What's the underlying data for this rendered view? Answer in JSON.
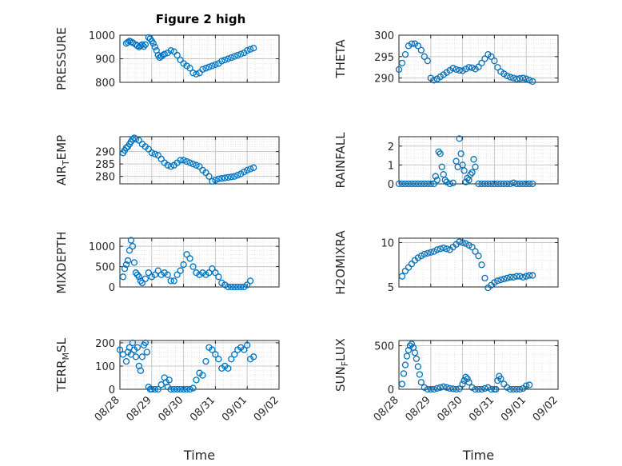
{
  "figure": {
    "title": "Figure 2 high"
  },
  "colors": {
    "marker": "#0072BD",
    "axis": "#262626",
    "grid": "#c8c8c8",
    "minor_grid": "#e2e2e2",
    "background": "#ffffff"
  },
  "chart_data": [
    {
      "type": "scatter",
      "title": "Figure 2 high",
      "ylabel": "PRESSURE",
      "ylim": [
        800,
        1000
      ],
      "yticks": [
        800,
        900,
        1000
      ],
      "xlabel": "",
      "xticklabels": [],
      "grid": true,
      "marker": "open-circle",
      "x": [
        0.2,
        0.25,
        0.3,
        0.35,
        0.4,
        0.5,
        0.55,
        0.6,
        0.65,
        0.7,
        0.75,
        0.8,
        0.9,
        0.95,
        1.0,
        1.05,
        1.1,
        1.15,
        1.2,
        1.25,
        1.3,
        1.35,
        1.4,
        1.5,
        1.6,
        1.7,
        1.8,
        1.9,
        2.0,
        2.1,
        2.2,
        2.3,
        2.4,
        2.5,
        2.6,
        2.7,
        2.8,
        2.9,
        3.0,
        3.1,
        3.2,
        3.3,
        3.4,
        3.5,
        3.6,
        3.7,
        3.8,
        3.9,
        4.0,
        4.1,
        4.2
      ],
      "y": [
        965,
        970,
        975,
        972,
        968,
        960,
        955,
        950,
        955,
        960,
        952,
        960,
        990,
        985,
        975,
        965,
        950,
        935,
        915,
        905,
        910,
        915,
        920,
        925,
        935,
        930,
        915,
        895,
        880,
        870,
        860,
        840,
        835,
        840,
        855,
        860,
        865,
        870,
        875,
        880,
        890,
        895,
        900,
        905,
        910,
        915,
        920,
        925,
        935,
        940,
        945
      ]
    },
    {
      "type": "scatter",
      "ylabel": "THETA",
      "ylim": [
        289,
        300
      ],
      "yticks": [
        290,
        295,
        300
      ],
      "xticklabels": [],
      "grid": true,
      "marker": "open-circle",
      "x": [
        0.0,
        0.1,
        0.2,
        0.3,
        0.4,
        0.5,
        0.6,
        0.7,
        0.8,
        0.9,
        1.0,
        1.1,
        1.2,
        1.3,
        1.4,
        1.5,
        1.6,
        1.7,
        1.8,
        1.9,
        2.0,
        2.1,
        2.2,
        2.3,
        2.4,
        2.5,
        2.6,
        2.7,
        2.8,
        2.9,
        3.0,
        3.1,
        3.2,
        3.3,
        3.4,
        3.5,
        3.6,
        3.7,
        3.8,
        3.9,
        4.0,
        4.1,
        4.2
      ],
      "y": [
        292,
        293.5,
        295.5,
        297.5,
        298,
        298,
        297.5,
        296.5,
        295,
        294,
        290,
        289.5,
        289.8,
        290.3,
        290.8,
        291.3,
        291.8,
        292.3,
        292,
        291.8,
        291.7,
        292.1,
        292.5,
        292.4,
        292.1,
        292.6,
        293.5,
        294.5,
        295.5,
        295,
        294,
        292.5,
        291.5,
        291,
        290.5,
        290.2,
        290,
        289.8,
        289.9,
        290,
        289.8,
        289.5,
        289.2
      ]
    },
    {
      "type": "scatter",
      "ylabel": "AIR_TEMP",
      "ylim": [
        277,
        296
      ],
      "yticks": [
        280,
        285,
        290
      ],
      "xticklabels": [],
      "grid": true,
      "marker": "open-circle",
      "x": [
        0.1,
        0.15,
        0.2,
        0.25,
        0.3,
        0.35,
        0.4,
        0.45,
        0.5,
        0.6,
        0.7,
        0.8,
        0.9,
        1.0,
        1.1,
        1.2,
        1.3,
        1.4,
        1.5,
        1.6,
        1.7,
        1.8,
        1.9,
        2.0,
        2.1,
        2.2,
        2.3,
        2.4,
        2.5,
        2.6,
        2.7,
        2.8,
        2.9,
        3.0,
        3.1,
        3.2,
        3.3,
        3.4,
        3.5,
        3.6,
        3.7,
        3.8,
        3.9,
        4.0,
        4.1,
        4.2
      ],
      "y": [
        289.5,
        290.5,
        291.5,
        292,
        293,
        294,
        295,
        295.5,
        295,
        294.5,
        293,
        292,
        291,
        289.5,
        289,
        288.5,
        287,
        285.5,
        284.5,
        284,
        284.5,
        285.5,
        286.5,
        286.5,
        286,
        285.5,
        285,
        284.5,
        284,
        282.5,
        281.5,
        280,
        278,
        278.5,
        279,
        279.2,
        279.4,
        279.6,
        279.8,
        280,
        280.5,
        281,
        281.8,
        282.5,
        283,
        283.5
      ]
    },
    {
      "type": "scatter",
      "ylabel": "RAINFALL",
      "ylim": [
        0,
        2.5
      ],
      "yticks": [
        0,
        1,
        2
      ],
      "xticklabels": [],
      "grid": true,
      "marker": "open-circle",
      "x": [
        0.0,
        0.1,
        0.2,
        0.3,
        0.4,
        0.5,
        0.6,
        0.7,
        0.8,
        0.9,
        1.0,
        1.1,
        1.15,
        1.2,
        1.25,
        1.3,
        1.35,
        1.4,
        1.45,
        1.5,
        1.6,
        1.7,
        1.8,
        1.85,
        1.9,
        1.95,
        2.0,
        2.05,
        2.1,
        2.15,
        2.2,
        2.25,
        2.3,
        2.35,
        2.4,
        2.5,
        2.6,
        2.7,
        2.8,
        2.9,
        3.0,
        3.1,
        3.2,
        3.3,
        3.4,
        3.5,
        3.6,
        3.7,
        3.8,
        3.9,
        4.0,
        4.1,
        4.2
      ],
      "y": [
        0,
        0,
        0,
        0,
        0,
        0,
        0,
        0,
        0,
        0,
        0,
        0,
        0.4,
        0.2,
        1.7,
        1.6,
        0.9,
        0.5,
        0.2,
        0.1,
        0,
        0.05,
        1.2,
        0.9,
        2.4,
        1.6,
        1.0,
        0.7,
        0.1,
        0.3,
        0.2,
        0.5,
        0.6,
        1.3,
        0.9,
        0,
        0,
        0,
        0,
        0,
        0,
        0,
        0,
        0,
        0,
        0,
        0.05,
        0,
        0,
        0,
        0,
        0,
        0
      ]
    },
    {
      "type": "scatter",
      "ylabel": "MIXDEPTH",
      "ylim": [
        0,
        1200
      ],
      "yticks": [
        0,
        500,
        1000
      ],
      "xticklabels": [],
      "grid": true,
      "marker": "open-circle",
      "x": [
        0.1,
        0.15,
        0.2,
        0.25,
        0.3,
        0.35,
        0.4,
        0.45,
        0.5,
        0.55,
        0.6,
        0.65,
        0.7,
        0.8,
        0.9,
        1.0,
        1.1,
        1.2,
        1.3,
        1.4,
        1.5,
        1.6,
        1.7,
        1.8,
        1.9,
        2.0,
        2.1,
        2.2,
        2.3,
        2.4,
        2.5,
        2.6,
        2.7,
        2.8,
        2.9,
        3.0,
        3.1,
        3.2,
        3.3,
        3.4,
        3.5,
        3.6,
        3.7,
        3.8,
        3.9,
        4.0,
        4.1
      ],
      "y": [
        250,
        450,
        550,
        650,
        900,
        1150,
        1000,
        600,
        350,
        300,
        250,
        150,
        100,
        200,
        350,
        250,
        300,
        400,
        300,
        350,
        300,
        150,
        150,
        300,
        400,
        550,
        800,
        700,
        500,
        350,
        300,
        350,
        300,
        350,
        450,
        350,
        250,
        100,
        50,
        0,
        0,
        0,
        0,
        0,
        0,
        50,
        150
      ]
    },
    {
      "type": "scatter",
      "ylabel": "H2OMIXRA",
      "ylim": [
        5,
        10.5
      ],
      "yticks": [
        5,
        10
      ],
      "xticklabels": [],
      "grid": true,
      "marker": "open-circle",
      "x": [
        0.1,
        0.2,
        0.3,
        0.4,
        0.5,
        0.6,
        0.7,
        0.8,
        0.9,
        1.0,
        1.1,
        1.2,
        1.3,
        1.4,
        1.5,
        1.6,
        1.7,
        1.8,
        1.9,
        2.0,
        2.1,
        2.2,
        2.3,
        2.4,
        2.5,
        2.6,
        2.7,
        2.8,
        2.9,
        3.0,
        3.1,
        3.2,
        3.3,
        3.4,
        3.5,
        3.6,
        3.7,
        3.8,
        3.9,
        4.0,
        4.1,
        4.2
      ],
      "y": [
        6.2,
        6.8,
        7.2,
        7.6,
        8.0,
        8.3,
        8.5,
        8.7,
        8.8,
        8.9,
        9.0,
        9.2,
        9.3,
        9.4,
        9.3,
        9.2,
        9.5,
        9.8,
        10.1,
        10.0,
        9.9,
        9.7,
        9.5,
        9.0,
        8.5,
        7.5,
        6.0,
        4.9,
        5.2,
        5.5,
        5.7,
        5.8,
        5.9,
        6.0,
        6.1,
        6.1,
        6.2,
        6.2,
        6.1,
        6.2,
        6.3,
        6.3
      ]
    },
    {
      "type": "scatter",
      "ylabel": "TERR_MSL",
      "ylim": [
        0,
        210
      ],
      "yticks": [
        0,
        100,
        200
      ],
      "xlabel": "Time",
      "xticklabels": [
        "08/28",
        "08/29",
        "08/30",
        "08/31",
        "09/01",
        "09/02"
      ],
      "grid": true,
      "marker": "open-circle",
      "x": [
        0.0,
        0.1,
        0.2,
        0.25,
        0.3,
        0.35,
        0.4,
        0.45,
        0.5,
        0.55,
        0.6,
        0.65,
        0.7,
        0.75,
        0.8,
        0.85,
        0.9,
        0.95,
        1.0,
        1.1,
        1.2,
        1.3,
        1.4,
        1.45,
        1.5,
        1.55,
        1.6,
        1.7,
        1.8,
        1.9,
        2.0,
        2.1,
        2.2,
        2.3,
        2.4,
        2.5,
        2.6,
        2.7,
        2.8,
        2.9,
        3.0,
        3.1,
        3.2,
        3.3,
        3.4,
        3.5,
        3.6,
        3.7,
        3.8,
        3.9,
        4.0,
        4.1,
        4.2
      ],
      "y": [
        170,
        150,
        120,
        160,
        180,
        150,
        200,
        170,
        140,
        180,
        100,
        80,
        140,
        190,
        200,
        160,
        10,
        0,
        0,
        0,
        0,
        20,
        50,
        30,
        10,
        40,
        0,
        0,
        0,
        0,
        0,
        0,
        0,
        5,
        40,
        70,
        60,
        120,
        180,
        170,
        150,
        130,
        90,
        100,
        90,
        130,
        150,
        170,
        180,
        170,
        190,
        130,
        140
      ]
    },
    {
      "type": "scatter",
      "ylabel": "SUN_FLUX",
      "ylim": [
        0,
        560
      ],
      "yticks": [
        0,
        500
      ],
      "xlabel": "Time",
      "xticklabels": [
        "08/28",
        "08/29",
        "08/30",
        "08/31",
        "09/01",
        "09/02"
      ],
      "grid": true,
      "marker": "open-circle",
      "x": [
        0.1,
        0.15,
        0.2,
        0.25,
        0.3,
        0.35,
        0.4,
        0.45,
        0.5,
        0.55,
        0.6,
        0.65,
        0.7,
        0.8,
        0.9,
        1.0,
        1.1,
        1.2,
        1.3,
        1.4,
        1.5,
        1.6,
        1.7,
        1.8,
        1.9,
        2.0,
        2.05,
        2.1,
        2.15,
        2.2,
        2.3,
        2.4,
        2.5,
        2.6,
        2.7,
        2.8,
        2.9,
        3.0,
        3.05,
        3.1,
        3.15,
        3.2,
        3.3,
        3.4,
        3.5,
        3.6,
        3.7,
        3.8,
        3.9,
        4.0,
        4.1
      ],
      "y": [
        60,
        180,
        280,
        380,
        450,
        500,
        520,
        480,
        420,
        350,
        260,
        170,
        80,
        20,
        0,
        0,
        0,
        10,
        20,
        30,
        20,
        10,
        5,
        0,
        5,
        60,
        100,
        140,
        120,
        80,
        20,
        0,
        0,
        0,
        10,
        20,
        0,
        0,
        0,
        100,
        150,
        120,
        60,
        20,
        0,
        0,
        0,
        0,
        10,
        40,
        50
      ]
    }
  ]
}
